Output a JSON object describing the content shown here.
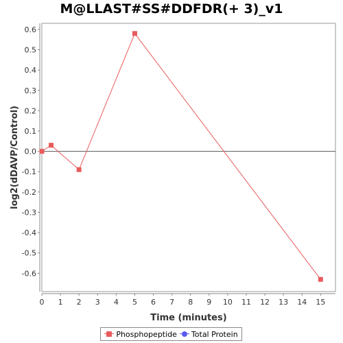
{
  "colors": {
    "phospho": "#e85b5b",
    "total": "#5a5aee",
    "plot_background": "#ffffff",
    "zero_line": "#555555"
  },
  "chart_data": {
    "type": "line",
    "title": "M@LLAST#SS#DDFDR(+ 3)_v1",
    "xlabel": "Time (minutes)",
    "ylabel": "log2(dDAVP/Control)",
    "xlim": [
      0,
      15.8
    ],
    "ylim": [
      -0.69,
      0.63
    ],
    "xticks": [
      0,
      1,
      2,
      3,
      4,
      5,
      6,
      7,
      8,
      9,
      10,
      11,
      12,
      13,
      14,
      15
    ],
    "yticks": [
      0.6,
      0.5,
      0.4,
      0.3,
      0.2,
      0.1,
      0.0,
      -0.1,
      -0.2,
      -0.3,
      -0.4,
      -0.5,
      -0.6
    ],
    "ytick_labels": [
      "0.6",
      "0.5",
      "0.4",
      "0.3",
      "0.2",
      "0.1",
      "0.0",
      "-0.1",
      "-0.2",
      "-0.3",
      "-0.4",
      "-0.5",
      "-0.6"
    ],
    "grid": false,
    "zero_line": true,
    "legend_position": "bottom",
    "series": [
      {
        "name": "Phosphopeptide",
        "marker": "square",
        "x": [
          0,
          0.5,
          2,
          5,
          15
        ],
        "y": [
          0.0,
          0.03,
          -0.09,
          0.58,
          -0.63
        ]
      },
      {
        "name": "Total Protein",
        "marker": "circle",
        "x": [],
        "y": []
      }
    ]
  }
}
